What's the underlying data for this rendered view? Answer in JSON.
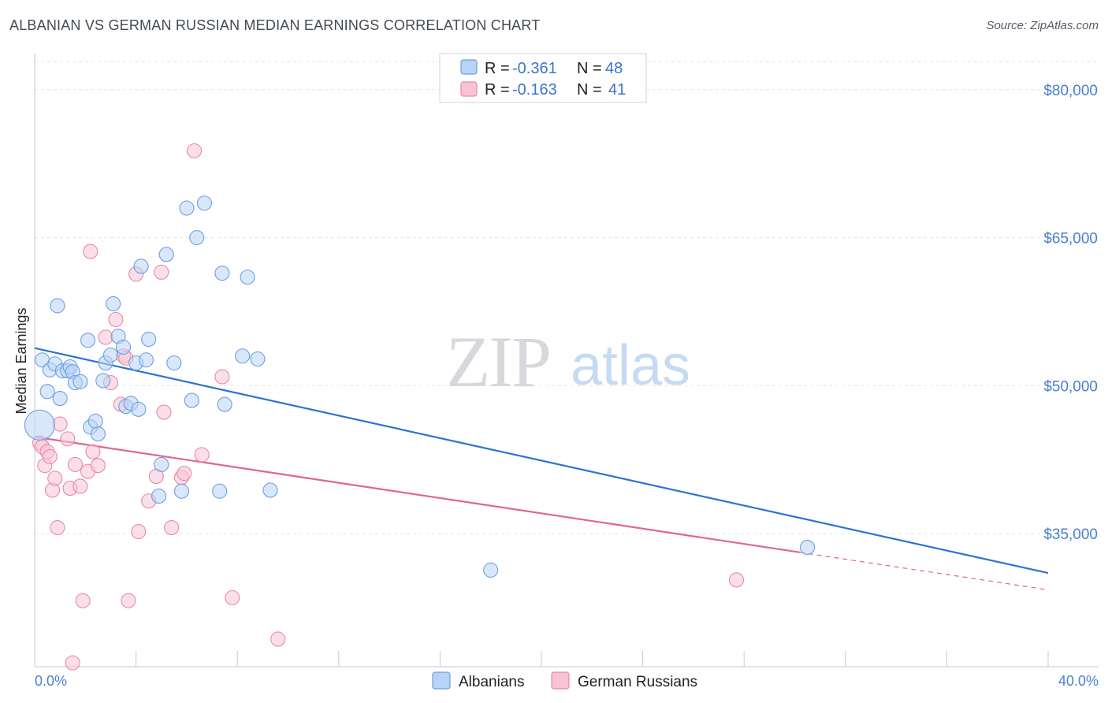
{
  "header": {
    "title": "ALBANIAN VS GERMAN RUSSIAN MEDIAN EARNINGS CORRELATION CHART",
    "source": "Source: ZipAtlas.com"
  },
  "watermark": {
    "zip": "ZIP",
    "atlas": "atlas"
  },
  "legend": {
    "rows": [
      {
        "r_label": "R = ",
        "r_value": "-0.361",
        "n_label": "N = ",
        "n_value": "48"
      },
      {
        "r_label": "R = ",
        "r_value": "-0.163",
        "n_label": "N = ",
        "n_value": "41"
      }
    ]
  },
  "chart_data": {
    "type": "scatter",
    "title": "ALBANIAN VS GERMAN RUSSIAN MEDIAN EARNINGS CORRELATION CHART",
    "xlabel": "",
    "ylabel": "Median Earnings",
    "xlim": [
      0,
      40
    ],
    "ylim": [
      21500,
      83500
    ],
    "x_tick_labels": [
      "0.0%",
      "40.0%"
    ],
    "y_ticks": [
      35000,
      50000,
      65000,
      80000
    ],
    "y_tick_labels": [
      "$35,000",
      "$50,000",
      "$65,000",
      "$80,000"
    ],
    "grid": true,
    "legend_position": "top-center",
    "series": [
      {
        "name": "Albanians",
        "color": "#6c9fe0",
        "fill": "#b9d3f6",
        "line_color": "#2d73d2",
        "r": -0.361,
        "n": 48,
        "trend": {
          "x": [
            0,
            40
          ],
          "y": [
            53800,
            31000
          ]
        },
        "points": [
          [
            0.2,
            46000,
            "big"
          ],
          [
            0.3,
            52600
          ],
          [
            0.5,
            49400
          ],
          [
            0.6,
            51600
          ],
          [
            0.8,
            52200
          ],
          [
            0.9,
            58100
          ],
          [
            1.0,
            48700
          ],
          [
            1.1,
            51500
          ],
          [
            1.3,
            51500
          ],
          [
            1.4,
            51900
          ],
          [
            1.5,
            51400
          ],
          [
            1.6,
            50300
          ],
          [
            1.8,
            50400
          ],
          [
            2.1,
            54600
          ],
          [
            2.2,
            45800
          ],
          [
            2.4,
            46400
          ],
          [
            2.5,
            45100
          ],
          [
            2.7,
            50500
          ],
          [
            2.8,
            52300
          ],
          [
            3.0,
            53100
          ],
          [
            3.1,
            58300
          ],
          [
            3.3,
            55000
          ],
          [
            3.5,
            53900
          ],
          [
            3.6,
            47900
          ],
          [
            3.8,
            48200
          ],
          [
            4.0,
            52300
          ],
          [
            4.1,
            47600
          ],
          [
            4.2,
            62100
          ],
          [
            4.4,
            52600
          ],
          [
            4.5,
            54700
          ],
          [
            4.9,
            38800
          ],
          [
            5.0,
            42000
          ],
          [
            5.2,
            63300
          ],
          [
            5.5,
            52300
          ],
          [
            5.8,
            39300
          ],
          [
            6.0,
            68000
          ],
          [
            6.2,
            48500
          ],
          [
            6.4,
            65000
          ],
          [
            6.7,
            68500
          ],
          [
            7.3,
            39300
          ],
          [
            7.5,
            48100
          ],
          [
            7.4,
            61400
          ],
          [
            8.2,
            53000
          ],
          [
            8.4,
            61000
          ],
          [
            8.8,
            52700
          ],
          [
            9.3,
            39400
          ],
          [
            18.0,
            31300
          ],
          [
            30.5,
            33600
          ]
        ]
      },
      {
        "name": "German Russians",
        "color": "#e889a8",
        "fill": "#f8c4d5",
        "line_color": "#e0668f",
        "r": -0.163,
        "n": 41,
        "trend": {
          "x": [
            0,
            30.2
          ],
          "y": [
            44800,
            33100
          ]
        },
        "trend_dashed": {
          "x": [
            30.2,
            40
          ],
          "y": [
            33100,
            29300
          ]
        },
        "points": [
          [
            0.2,
            44200
          ],
          [
            0.3,
            43800
          ],
          [
            0.5,
            43300
          ],
          [
            0.4,
            41900
          ],
          [
            0.7,
            39400
          ],
          [
            0.8,
            40600
          ],
          [
            0.9,
            35600
          ],
          [
            1.0,
            46100
          ],
          [
            1.3,
            44600
          ],
          [
            1.4,
            39600
          ],
          [
            1.5,
            21900
          ],
          [
            1.6,
            42000
          ],
          [
            1.8,
            39800
          ],
          [
            1.9,
            28200
          ],
          [
            2.1,
            41300
          ],
          [
            2.2,
            63600
          ],
          [
            2.3,
            43300
          ],
          [
            2.5,
            41900
          ],
          [
            2.8,
            54900
          ],
          [
            3.0,
            50300
          ],
          [
            3.2,
            56700
          ],
          [
            3.4,
            48100
          ],
          [
            3.5,
            53000
          ],
          [
            3.6,
            52800
          ],
          [
            3.7,
            28200
          ],
          [
            4.0,
            61300
          ],
          [
            4.1,
            35200
          ],
          [
            4.5,
            38300
          ],
          [
            4.8,
            40800
          ],
          [
            5.0,
            61500
          ],
          [
            5.1,
            47300
          ],
          [
            5.4,
            35600
          ],
          [
            5.8,
            40700
          ],
          [
            5.9,
            41100
          ],
          [
            6.3,
            73800
          ],
          [
            6.6,
            43000
          ],
          [
            7.4,
            50900
          ],
          [
            7.8,
            28500
          ],
          [
            9.6,
            24300
          ],
          [
            27.7,
            30300
          ],
          [
            0.6,
            42800
          ]
        ]
      }
    ]
  }
}
